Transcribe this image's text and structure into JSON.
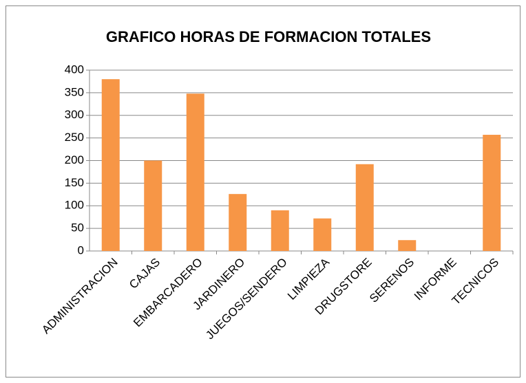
{
  "chart_data": {
    "type": "bar",
    "title": "GRAFICO HORAS DE FORMACION TOTALES",
    "categories": [
      "ADMINISTRACION",
      "CAJAS",
      "EMBARCADERO",
      "JARDINERO",
      "JUEGOS/SENDERO",
      "LIMPIEZA",
      "DRUGSTORE",
      "SERENOS",
      "INFORME",
      "TECNICOS"
    ],
    "values": [
      380,
      200,
      348,
      126,
      90,
      72,
      192,
      24,
      0,
      257
    ],
    "color": "#f79646",
    "ylim": [
      0,
      400
    ],
    "yticks": [
      0,
      50,
      100,
      150,
      200,
      250,
      300,
      350,
      400
    ],
    "grid": true
  }
}
